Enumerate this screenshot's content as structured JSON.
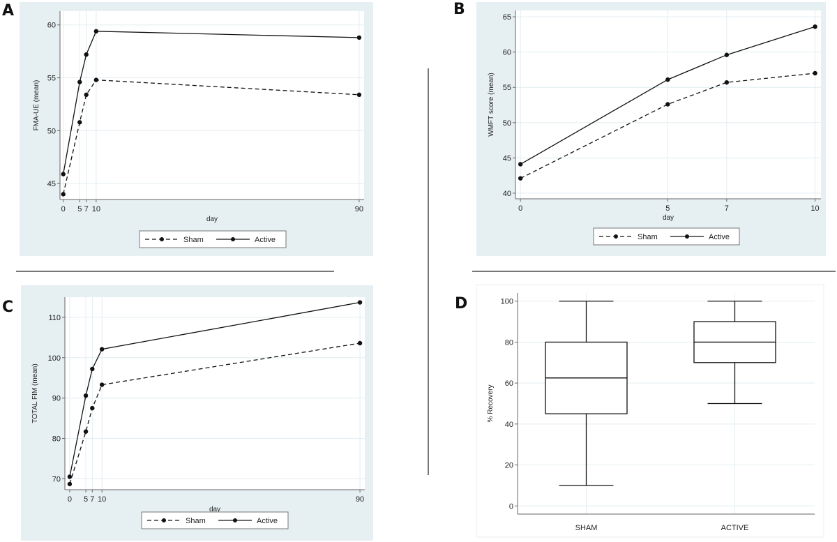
{
  "figure": {
    "separators": [
      "horizontal-left",
      "horizontal-right",
      "vertical-center"
    ]
  },
  "colors": {
    "panel_bg": "#e6eff2",
    "plot_bg": "#ffffff",
    "grid": "#e3edf1",
    "line": "#111111",
    "separator": "#777777"
  },
  "chart_data": [
    {
      "panel": "A",
      "type": "line",
      "title": "",
      "xlabel": "day",
      "ylabel": "FMA-UE (mean)",
      "x": [
        0,
        5,
        7,
        10,
        90
      ],
      "xticks": [
        "0",
        "5",
        "7",
        "10",
        "90"
      ],
      "yticks": [
        "45",
        "50",
        "55",
        "60"
      ],
      "xlim": [
        -1,
        91.5
      ],
      "ylim": [
        43.5,
        61.3
      ],
      "grid": true,
      "legend": "bottom",
      "series": [
        {
          "name": "Sham",
          "style": "dashed",
          "values": [
            44.0,
            50.8,
            53.4,
            54.8,
            53.4
          ]
        },
        {
          "name": "Active",
          "style": "solid",
          "values": [
            45.9,
            54.6,
            57.2,
            59.4,
            58.8
          ]
        }
      ]
    },
    {
      "panel": "B",
      "type": "line",
      "title": "",
      "xlabel": "day",
      "ylabel": "WMFT score (mean)",
      "x": [
        0,
        5,
        7,
        10
      ],
      "xticks": [
        "0",
        "5",
        "7",
        "10"
      ],
      "yticks": [
        "40",
        "45",
        "50",
        "55",
        "60",
        "65"
      ],
      "xlim": [
        -0.17,
        10.2
      ],
      "ylim": [
        39.2,
        65.9
      ],
      "grid": true,
      "legend": "bottom",
      "series": [
        {
          "name": "Sham",
          "style": "dashed",
          "values": [
            42.1,
            52.6,
            55.7,
            57.0
          ]
        },
        {
          "name": "Active",
          "style": "solid",
          "values": [
            44.1,
            56.1,
            59.6,
            63.6
          ]
        }
      ]
    },
    {
      "panel": "C",
      "type": "line",
      "title": "",
      "xlabel": "day",
      "ylabel": "TOTAL FIM (mean)",
      "x": [
        0,
        5,
        7,
        10,
        90
      ],
      "xticks": [
        "0",
        "5",
        "7",
        "10",
        "90"
      ],
      "yticks": [
        "70",
        "80",
        "90",
        "100",
        "110"
      ],
      "xlim": [
        -1.5,
        91.5
      ],
      "ylim": [
        67.3,
        115.0
      ],
      "grid": true,
      "legend": "bottom",
      "series": [
        {
          "name": "Sham",
          "style": "dashed",
          "values": [
            68.7,
            81.7,
            87.5,
            93.3,
            103.6
          ]
        },
        {
          "name": "Active",
          "style": "solid",
          "values": [
            70.5,
            90.6,
            97.2,
            102.1,
            113.7
          ]
        }
      ]
    },
    {
      "panel": "D",
      "type": "box",
      "title": "",
      "xlabel": "",
      "ylabel": "% Recovery",
      "categories": [
        "SHAM",
        "ACTIVE"
      ],
      "yticks": [
        "0",
        "20",
        "40",
        "60",
        "80",
        "100"
      ],
      "ylim": [
        -4,
        104
      ],
      "grid": true,
      "boxes": [
        {
          "name": "SHAM",
          "min": 10,
          "q1": 45,
          "median": 62.5,
          "q3": 80,
          "max": 100
        },
        {
          "name": "ACTIVE",
          "min": 50,
          "q1": 70,
          "median": 80,
          "q3": 90,
          "max": 100
        }
      ]
    }
  ]
}
